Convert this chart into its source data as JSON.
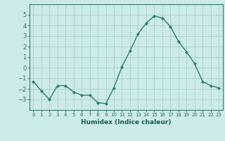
{
  "x": [
    0,
    1,
    2,
    3,
    4,
    5,
    6,
    7,
    8,
    9,
    10,
    11,
    12,
    13,
    14,
    15,
    16,
    17,
    18,
    19,
    20,
    21,
    22,
    23
  ],
  "y": [
    -1.3,
    -2.2,
    -3.0,
    -1.7,
    -1.7,
    -2.3,
    -2.6,
    -2.6,
    -3.3,
    -3.4,
    -1.9,
    0.1,
    1.6,
    3.2,
    4.2,
    4.9,
    4.7,
    3.9,
    2.5,
    1.5,
    0.4,
    -1.3,
    -1.7,
    -1.9
  ],
  "line_color": "#2e7d6e",
  "marker": "D",
  "marker_size": 2.2,
  "bg_color": "#cceae8",
  "grid_color": "#b0d4d0",
  "xlabel": "Humidex (Indice chaleur)",
  "ylim": [
    -4,
    6
  ],
  "xlim": [
    -0.5,
    23.5
  ],
  "yticks": [
    -3,
    -2,
    -1,
    0,
    1,
    2,
    3,
    4,
    5
  ],
  "xticks": [
    0,
    1,
    2,
    3,
    4,
    5,
    6,
    7,
    8,
    9,
    10,
    11,
    12,
    13,
    14,
    15,
    16,
    17,
    18,
    19,
    20,
    21,
    22,
    23
  ],
  "tick_color": "#2e6e60",
  "label_color": "#1a5c50",
  "spine_color": "#2e7d6e"
}
